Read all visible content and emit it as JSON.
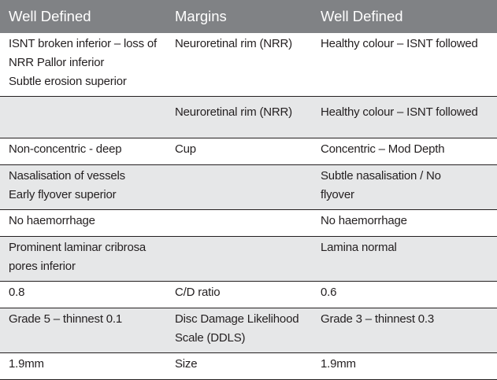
{
  "headers": [
    "Well Defined",
    "Margins",
    "Well Defined"
  ],
  "rows": [
    {
      "left": [
        "ISNT broken inferior – loss of",
        "NRR Pallor inferior",
        "Subtle erosion superior"
      ],
      "middle": [
        "Neuroretinal rim (NRR)"
      ],
      "right": [
        "Healthy colour – ISNT followed"
      ]
    },
    {
      "left": [],
      "middle": [
        "Neuroretinal rim (NRR)"
      ],
      "right": [
        "Healthy colour – ISNT followed"
      ]
    },
    {
      "left": [
        "Non-concentric - deep"
      ],
      "middle": [
        "Cup"
      ],
      "right": [
        "Concentric – Mod Depth"
      ]
    },
    {
      "left": [
        "Nasalisation of vessels",
        "Early flyover superior"
      ],
      "middle": [],
      "right": [
        "Subtle nasalisation / No",
        "flyover"
      ]
    },
    {
      "left": [
        "No haemorrhage"
      ],
      "middle": [],
      "right": [
        "No haemorrhage"
      ]
    },
    {
      "left": [
        "Prominent laminar cribrosa",
        "pores inferior"
      ],
      "middle": [],
      "right": [
        "Lamina normal"
      ]
    },
    {
      "left": [
        "0.8"
      ],
      "middle": [
        "C/D ratio"
      ],
      "right": [
        "0.6"
      ]
    },
    {
      "left": [
        "Grade 5 – thinnest 0.1"
      ],
      "middle": [
        "Disc Damage Likelihood",
        "Scale (DDLS)"
      ],
      "right": [
        "Grade 3 – thinnest 0.3"
      ]
    },
    {
      "left": [
        "1.9mm"
      ],
      "middle": [
        "Size"
      ],
      "right": [
        "1.9mm"
      ]
    }
  ],
  "colors": {
    "header_bg": "#808285",
    "header_text": "#ffffff",
    "shaded_row_bg": "#e6e7e8",
    "text": "#231f20",
    "rule": "#231f20"
  }
}
